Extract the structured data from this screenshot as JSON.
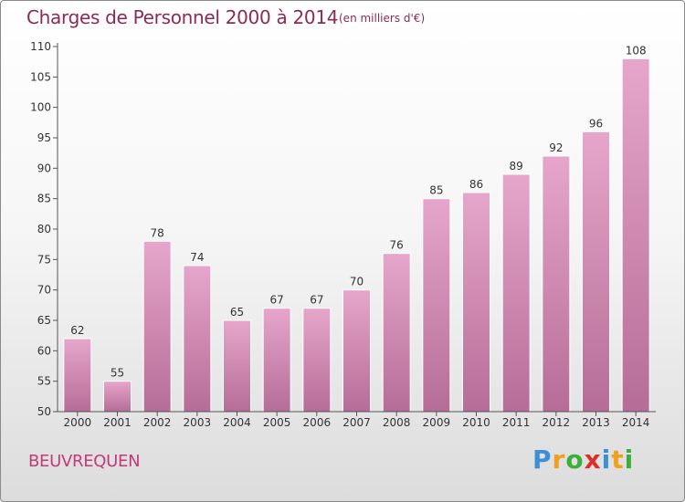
{
  "title": "Charges de Personnel 2000 à 2014",
  "subtitle": "(en milliers d'€)",
  "commune": "BEUVREQUEN",
  "brand": {
    "letters": [
      "P",
      "r",
      "o",
      "x",
      "i",
      "t",
      "i"
    ],
    "colors": [
      "#3a8fd6",
      "#f0a020",
      "#3cae3c",
      "#d9302c",
      "#3a8fd6",
      "#f0a020",
      "#3cae3c"
    ]
  },
  "colors": {
    "title": "#8c2a55",
    "commune": "#c33a7a",
    "bar_top": "#e6a6cb",
    "bar_bottom": "#b56d97"
  },
  "chart_data": {
    "type": "bar",
    "title": "Charges de Personnel 2000 à 2014",
    "categories": [
      "2000",
      "2001",
      "2002",
      "2003",
      "2004",
      "2005",
      "2006",
      "2007",
      "2008",
      "2009",
      "2010",
      "2011",
      "2012",
      "2013",
      "2014"
    ],
    "values": [
      62,
      55,
      78,
      74,
      65,
      67,
      67,
      70,
      76,
      85,
      86,
      89,
      92,
      96,
      108
    ],
    "ylim": [
      50,
      110
    ],
    "yticks": [
      50,
      55,
      60,
      65,
      70,
      75,
      80,
      85,
      90,
      95,
      100,
      105,
      110
    ],
    "grid": false,
    "data_labels": true
  }
}
